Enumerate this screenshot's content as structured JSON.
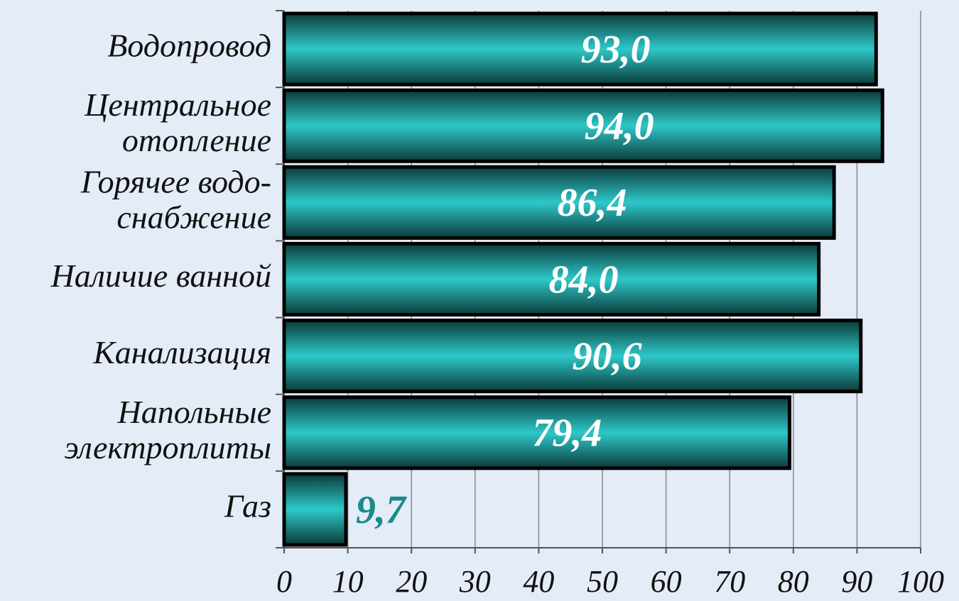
{
  "chart_data": {
    "type": "barh",
    "categories": [
      "Водопровод",
      "Центральное\nотопление",
      "Горячее водо-\nснабжение",
      "Наличие ванной",
      "Канализация",
      "Напольные\nэлектроплиты",
      "Газ"
    ],
    "values": [
      93.0,
      94.0,
      86.4,
      84.0,
      90.6,
      79.4,
      9.7
    ],
    "value_labels": [
      "93,0",
      "94,0",
      "86,4",
      "84,0",
      "90,6",
      "79,4",
      "9,7"
    ],
    "color": "#2ec8c8",
    "xlim": [
      0,
      100
    ],
    "xticks": [
      0,
      10,
      20,
      30,
      40,
      50,
      60,
      70,
      80,
      90,
      100
    ],
    "grid": true
  }
}
